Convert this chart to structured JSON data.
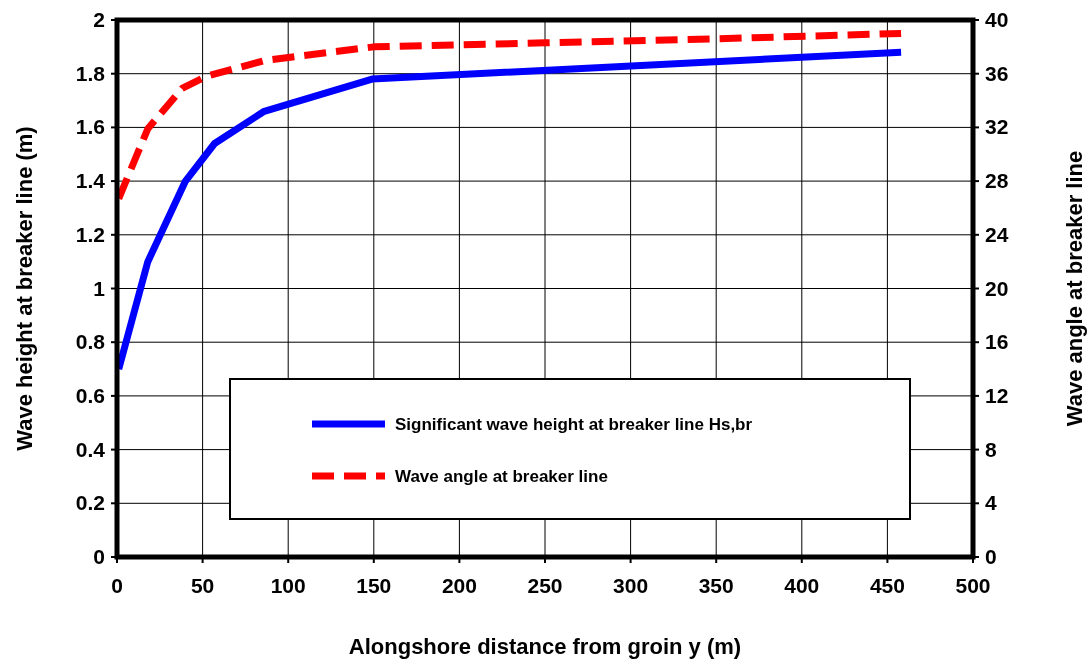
{
  "chart_data": {
    "type": "line",
    "xlabel": "Alongshore distance from groin y (m)",
    "ylabel": "Wave height at breaker line (m)",
    "y2label": "Wave angle at breaker line",
    "xlim": [
      0,
      500
    ],
    "xticks": [
      0,
      50,
      100,
      150,
      200,
      250,
      300,
      350,
      400,
      450,
      500
    ],
    "ylim": [
      0,
      2
    ],
    "yticks": [
      0,
      0.2,
      0.4,
      0.6,
      0.8,
      1,
      1.2,
      1.4,
      1.6,
      1.8,
      2
    ],
    "y2lim": [
      0,
      40
    ],
    "y2ticks": [
      0,
      4,
      8,
      12,
      16,
      20,
      24,
      28,
      32,
      36,
      40
    ],
    "grid": true,
    "legend": "bottom",
    "series": [
      {
        "name": "Significant wave height at breaker line Hs,br",
        "color": "#0000ff",
        "line_style": "solid",
        "x": [
          1,
          18,
          40,
          57,
          86,
          149,
          458
        ],
        "values": [
          0.7,
          1.1,
          1.4,
          1.54,
          1.66,
          1.78,
          1.88
        ]
      },
      {
        "name": "Wave angle at breaker line",
        "color": "#ff0000",
        "line_style": "dashed",
        "axis": "y2",
        "x": [
          1,
          18,
          38,
          52,
          87,
          150,
          250,
          350,
          458
        ],
        "values": [
          26.7,
          31.9,
          34.9,
          35.8,
          37.0,
          38.0,
          38.3,
          38.6,
          39.0
        ]
      }
    ]
  }
}
